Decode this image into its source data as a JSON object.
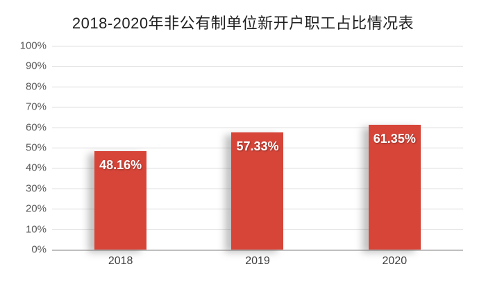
{
  "chart_data": {
    "type": "bar",
    "title": "2018-2020年非公有制单位新开户职工占比情况表",
    "categories": [
      "2018",
      "2019",
      "2020"
    ],
    "values": [
      48.16,
      57.33,
      61.35
    ],
    "data_labels": [
      "48.16%",
      "57.33%",
      "61.35%"
    ],
    "y_ticks_top_to_bottom": [
      "100%",
      "90%",
      "80%",
      "70%",
      "60%",
      "50%",
      "40%",
      "30%",
      "20%",
      "10%",
      "0%"
    ],
    "ylim": [
      0,
      100
    ],
    "xlabel": "",
    "ylabel": "",
    "grid": true,
    "legend": "none",
    "bar_color": "#d74539",
    "gridline_color": "#d9d9d9",
    "axis_line_color": "#bfbfbf",
    "tick_label_color": "#595959",
    "category_label_color": "#404040",
    "data_label_color": "#ffffff"
  }
}
